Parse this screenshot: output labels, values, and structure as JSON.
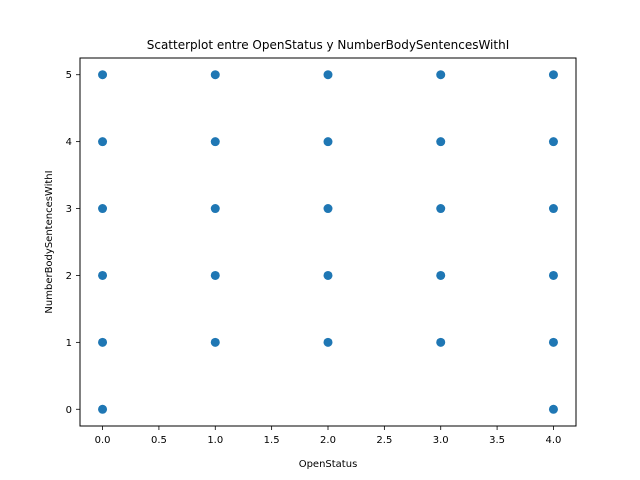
{
  "chart_data": {
    "type": "scatter",
    "title": "Scatterplot entre OpenStatus y NumberBodySentencesWithI",
    "xlabel": "OpenStatus",
    "ylabel": "NumberBodySentencesWithI",
    "xlim": [
      -0.2,
      4.2
    ],
    "ylim": [
      -0.25,
      5.25
    ],
    "xticks": [
      "0.0",
      "0.5",
      "1.0",
      "1.5",
      "2.0",
      "2.5",
      "3.0",
      "3.5",
      "4.0"
    ],
    "yticks": [
      "0",
      "1",
      "2",
      "3",
      "4",
      "5"
    ],
    "grid": false,
    "marker_color": "#1f77b4",
    "points": [
      {
        "x": 0,
        "y": 0
      },
      {
        "x": 0,
        "y": 1
      },
      {
        "x": 0,
        "y": 2
      },
      {
        "x": 0,
        "y": 3
      },
      {
        "x": 0,
        "y": 4
      },
      {
        "x": 0,
        "y": 5
      },
      {
        "x": 1,
        "y": 1
      },
      {
        "x": 1,
        "y": 2
      },
      {
        "x": 1,
        "y": 3
      },
      {
        "x": 1,
        "y": 4
      },
      {
        "x": 1,
        "y": 5
      },
      {
        "x": 2,
        "y": 1
      },
      {
        "x": 2,
        "y": 2
      },
      {
        "x": 2,
        "y": 3
      },
      {
        "x": 2,
        "y": 4
      },
      {
        "x": 2,
        "y": 5
      },
      {
        "x": 3,
        "y": 1
      },
      {
        "x": 3,
        "y": 2
      },
      {
        "x": 3,
        "y": 3
      },
      {
        "x": 3,
        "y": 4
      },
      {
        "x": 3,
        "y": 5
      },
      {
        "x": 4,
        "y": 0
      },
      {
        "x": 4,
        "y": 1
      },
      {
        "x": 4,
        "y": 2
      },
      {
        "x": 4,
        "y": 3
      },
      {
        "x": 4,
        "y": 4
      },
      {
        "x": 4,
        "y": 5
      }
    ]
  }
}
